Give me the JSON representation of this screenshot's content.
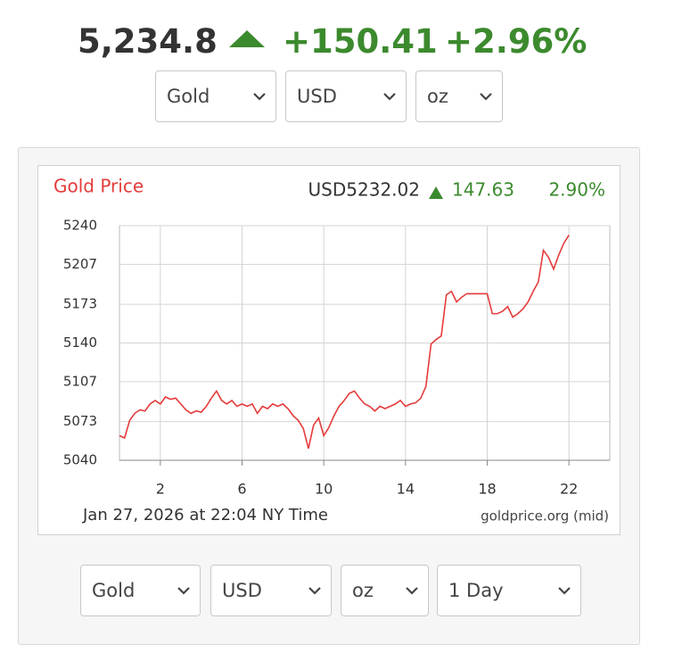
{
  "header": {
    "price": "5,234.8",
    "change": "+150.41",
    "change_pct": "+2.96%"
  },
  "selectors_top": [
    "Gold",
    "USD",
    "oz"
  ],
  "chart_data": {
    "type": "line",
    "title": "Gold Price",
    "current_price": "USD5232.02",
    "change": "147.63",
    "change_pct": "2.90%",
    "unit_label": "oz",
    "timestamp": "Jan 27, 2026 at 22:04 NY Time",
    "source": "goldprice.org (mid)",
    "color": "#e53b3b",
    "x": [
      0,
      0.25,
      0.5,
      0.75,
      1,
      1.25,
      1.5,
      1.75,
      2,
      2.25,
      2.5,
      2.75,
      3,
      3.25,
      3.5,
      3.75,
      4,
      4.25,
      4.5,
      4.75,
      5,
      5.25,
      5.5,
      5.75,
      6,
      6.25,
      6.5,
      6.75,
      7,
      7.25,
      7.5,
      7.75,
      8,
      8.25,
      8.5,
      8.75,
      9,
      9.25,
      9.5,
      9.75,
      10,
      10.25,
      10.5,
      10.75,
      11,
      11.25,
      11.5,
      11.75,
      12,
      12.25,
      12.5,
      12.75,
      13,
      13.25,
      13.5,
      13.75,
      14,
      14.25,
      14.5,
      14.75,
      15,
      15.25,
      15.5,
      15.75,
      16,
      16.25,
      16.5,
      16.75,
      17,
      17.25,
      17.5,
      17.75,
      18,
      18.25,
      18.5,
      18.75,
      19,
      19.25,
      19.5,
      19.75,
      20,
      20.25,
      20.5,
      20.75,
      21,
      21.25,
      21.5,
      21.75,
      22
    ],
    "values": [
      5061,
      5059,
      5074,
      5080,
      5083,
      5082,
      5088,
      5091,
      5088,
      5094,
      5092,
      5093,
      5088,
      5083,
      5080,
      5082,
      5081,
      5086,
      5093,
      5099,
      5091,
      5088,
      5091,
      5086,
      5088,
      5086,
      5088,
      5080,
      5086,
      5084,
      5088,
      5086,
      5088,
      5084,
      5078,
      5074,
      5067,
      5050,
      5070,
      5076,
      5061,
      5068,
      5078,
      5086,
      5091,
      5097,
      5099,
      5093,
      5088,
      5086,
      5082,
      5086,
      5084,
      5086,
      5088,
      5091,
      5086,
      5088,
      5089,
      5093,
      5103,
      5139,
      5143,
      5146,
      5181,
      5184,
      5175,
      5179,
      5182,
      5182,
      5182,
      5182,
      5182,
      5165,
      5165,
      5167,
      5171,
      5162,
      5165,
      5169,
      5175,
      5184,
      5192,
      5219,
      5213,
      5203,
      5215,
      5225,
      5232
    ],
    "xlim": [
      0,
      24
    ],
    "xticks": [
      2,
      6,
      10,
      14,
      18,
      22
    ],
    "ylim": [
      5040,
      5240
    ],
    "yticks": [
      5040,
      5073,
      5107,
      5140,
      5173,
      5207,
      5240
    ],
    "grid": true
  },
  "selectors_bottom": [
    "Gold",
    "USD",
    "oz",
    "1 Day"
  ]
}
